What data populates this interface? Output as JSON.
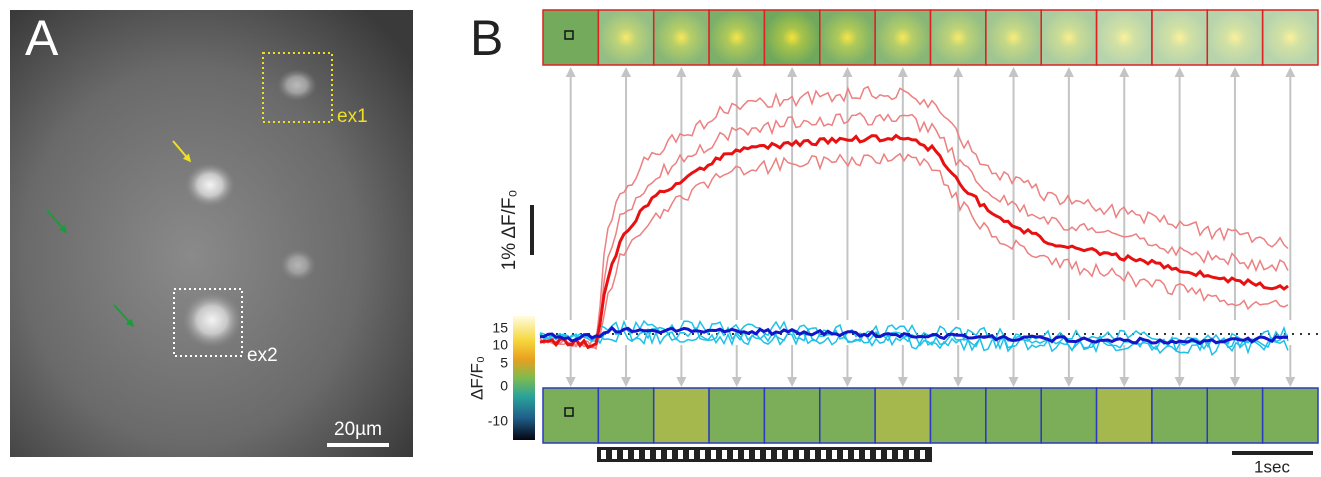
{
  "panel_a": {
    "label": "A",
    "box_1": "ex1",
    "box_2": "ex2",
    "scale_bar": "20µm"
  },
  "panel_b": {
    "label": "B",
    "amplitude_scale": "1% ΔF/F₀",
    "time_scale": "1sec",
    "colorbar": {
      "title": "ΔF/F₀",
      "ticks": [
        "15",
        "10",
        "5",
        "0",
        "-10"
      ]
    }
  }
}
